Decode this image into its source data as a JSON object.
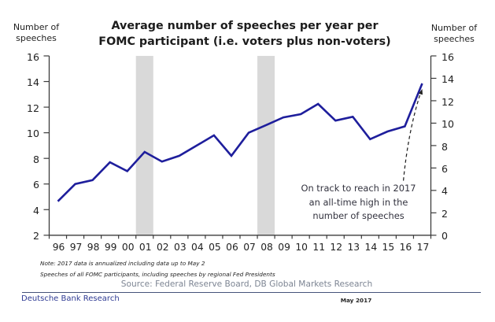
{
  "title": {
    "line1": "Average number of speeches per year per",
    "line2": "FOMC participant (i.e. voters plus non-voters)"
  },
  "left_axis": {
    "header_line1": "Number of",
    "header_line2": "speeches",
    "tick_labels": [
      "16",
      "14",
      "12",
      "10",
      "8",
      "6",
      "4",
      "2"
    ]
  },
  "right_axis": {
    "header_line1": "Number of",
    "header_line2": "speeches",
    "tick_labels": [
      "16",
      "14",
      "12",
      "10",
      "8",
      "6",
      "4",
      "2",
      "0"
    ]
  },
  "chart_data": {
    "type": "line",
    "title": "Average number of speeches per year per FOMC participant (i.e. voters plus non-voters)",
    "categories": [
      "96",
      "97",
      "98",
      "99",
      "00",
      "01",
      "02",
      "03",
      "04",
      "05",
      "06",
      "07",
      "08",
      "09",
      "10",
      "11",
      "12",
      "13",
      "14",
      "15",
      "16",
      "17"
    ],
    "values": [
      4.65,
      6.0,
      6.3,
      7.7,
      7.0,
      8.5,
      7.75,
      8.2,
      9.0,
      9.8,
      8.2,
      10.0,
      10.6,
      11.2,
      11.45,
      12.25,
      10.95,
      11.25,
      9.5,
      10.1,
      10.5,
      13.85
    ],
    "xlabel": "",
    "ylabel_left": "Number of speeches",
    "ylabel_right": "Number of speeches",
    "left_ylim": [
      2,
      16
    ],
    "right_ylim": [
      0,
      16
    ],
    "y_tick_step": 2,
    "grid": false,
    "legend": false,
    "line_color": "#1e1e9c",
    "recession_band_categories": [
      "01",
      "08"
    ],
    "band_color": "#d9d9d9"
  },
  "annotation": {
    "line1": "On track to reach in 2017",
    "line2": "an all-time high in the",
    "line3": "number of speeches"
  },
  "notes": {
    "note1": "Note: 2017 data is annualized including data up to May 2",
    "note2": "Speeches of all FOMC participants, including speeches by regional Fed Presidents"
  },
  "source": {
    "text": "Source: Federal Reserve Board, DB Global Markets Research"
  },
  "footer": {
    "brand": "Deutsche Bank Research",
    "date": "May 2017"
  }
}
